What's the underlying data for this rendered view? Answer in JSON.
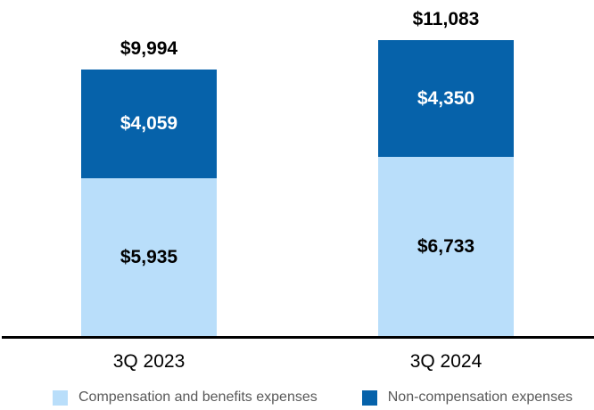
{
  "chart_data": {
    "type": "bar",
    "stacked": true,
    "categories": [
      "3Q 2023",
      "3Q 2024"
    ],
    "series": [
      {
        "name": "Compensation and benefits expenses",
        "color": "#B9DEFA",
        "values": [
          5935,
          6733
        ],
        "labels": [
          "$5,935",
          "$6,733"
        ]
      },
      {
        "name": "Non-compensation expenses",
        "color": "#0662AA",
        "values": [
          4059,
          4350
        ],
        "labels": [
          "$4,059",
          "$4,350"
        ]
      }
    ],
    "totals": [
      9994,
      11083
    ],
    "total_labels": [
      "$9,994",
      "$11,083"
    ],
    "title": "",
    "xlabel": "",
    "ylabel": "",
    "legend_position": "bottom",
    "axis_line_color": "#000000",
    "legend_text_color": "#595959"
  }
}
